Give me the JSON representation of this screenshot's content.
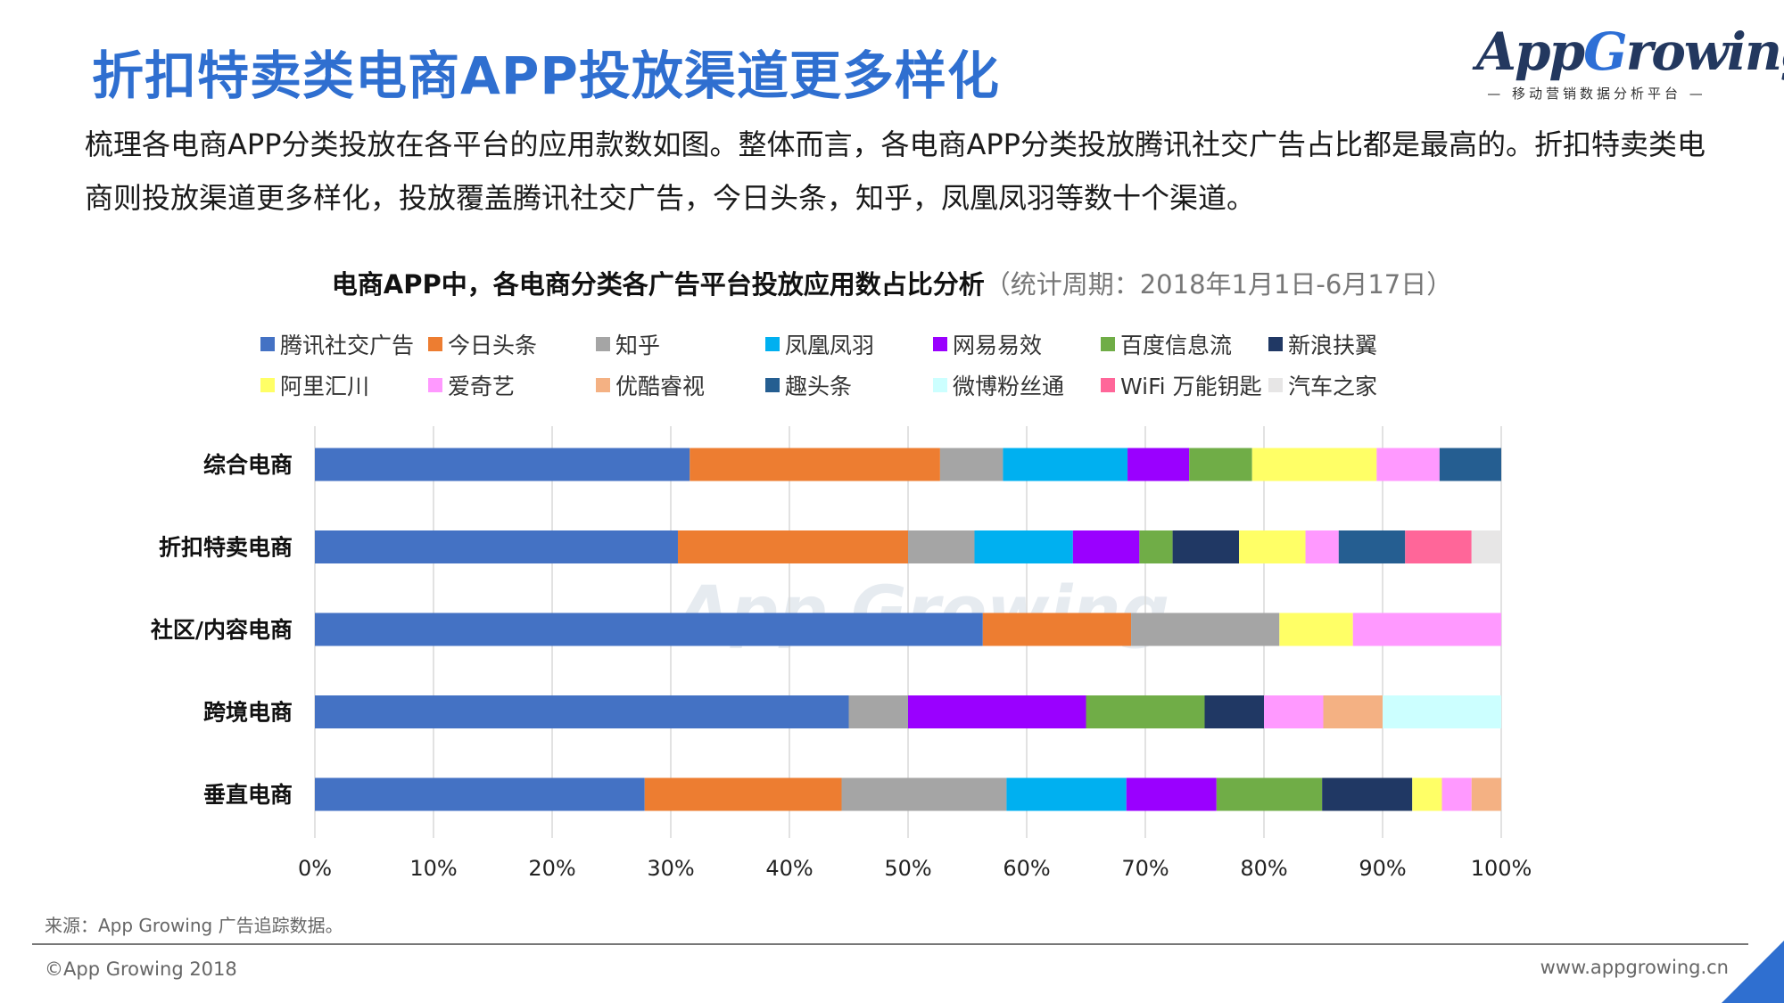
{
  "title": "折扣特卖类电商APP投放渠道更多样化",
  "logo": {
    "brand_prefix": "App",
    "brand_g": "G",
    "brand_suffix": "rowing",
    "tagline": "— 移动营销数据分析平台 —"
  },
  "description": "梳理各电商APP分类投放在各平台的应用款数如图。整体而言，各电商APP分类投放腾讯社交广告占比都是最高的。折扣特卖类电商则投放渠道更多样化，投放覆盖腾讯社交广告，今日头条，知乎，凤凰凤羽等数十个渠道。",
  "watermark": "App Growing",
  "source": "来源：App Growing 广告追踪数据。",
  "copyright": "©App Growing 2018",
  "website": "www.appgrowing.cn",
  "colors": {
    "title": "#2f6fd0",
    "brand": "#23385f",
    "accent": "#2d6fd6"
  },
  "chart_data": {
    "type": "bar",
    "orientation": "horizontal",
    "stacked": "percent",
    "title": "电商APP中，各电商分类各广告平台投放应用数占比分析",
    "subtitle": "（统计周期：2018年1月1日-6月17日）",
    "categories": [
      "综合电商",
      "折扣特卖电商",
      "社区/内容电商",
      "跨境电商",
      "垂直电商"
    ],
    "xlim": [
      0,
      100
    ],
    "xticks": [
      "0%",
      "10%",
      "20%",
      "30%",
      "40%",
      "50%",
      "60%",
      "70%",
      "80%",
      "90%",
      "100%"
    ],
    "grid": true,
    "legend_position": "top",
    "series": [
      {
        "name": "腾讯社交广告",
        "color": "#4472c4",
        "values": [
          31.6,
          30.6,
          56.3,
          45.0,
          27.8
        ]
      },
      {
        "name": "今日头条",
        "color": "#ed7d31",
        "values": [
          21.1,
          19.4,
          12.5,
          0,
          16.6
        ]
      },
      {
        "name": "知乎",
        "color": "#a5a5a5",
        "values": [
          5.3,
          5.6,
          12.5,
          5.0,
          13.9
        ]
      },
      {
        "name": "凤凰凤羽",
        "color": "#00b0f0",
        "values": [
          10.5,
          8.3,
          0,
          0,
          10.1
        ]
      },
      {
        "name": "网易易效",
        "color": "#9a00ff",
        "values": [
          5.2,
          5.6,
          0,
          15.0,
          7.6
        ]
      },
      {
        "name": "百度信息流",
        "color": "#70ad47",
        "values": [
          5.3,
          2.8,
          0,
          10.0,
          8.9
        ]
      },
      {
        "name": "新浪扶翼",
        "color": "#203864",
        "values": [
          0,
          5.6,
          0,
          5.0,
          7.6
        ]
      },
      {
        "name": "阿里汇川",
        "color": "#ffff66",
        "values": [
          10.5,
          5.6,
          6.2,
          0,
          2.5
        ]
      },
      {
        "name": "爱奇艺",
        "color": "#ff99ff",
        "values": [
          5.3,
          2.8,
          12.5,
          5.0,
          2.5
        ]
      },
      {
        "name": "优酷睿视",
        "color": "#f4b183",
        "values": [
          0,
          0,
          0,
          5.0,
          2.5
        ]
      },
      {
        "name": "趣头条",
        "color": "#255e91",
        "values": [
          5.2,
          5.6,
          0,
          0,
          0
        ]
      },
      {
        "name": "微博粉丝通",
        "color": "#ccffff",
        "values": [
          0,
          0,
          0,
          10.0,
          0
        ]
      },
      {
        "name": "WiFi 万能钥匙",
        "color": "#ff6699",
        "values": [
          0,
          5.6,
          0,
          0,
          0
        ]
      },
      {
        "name": "汽车之家",
        "color": "#e7e6e6",
        "values": [
          0,
          2.5,
          0,
          0,
          0
        ]
      }
    ]
  }
}
